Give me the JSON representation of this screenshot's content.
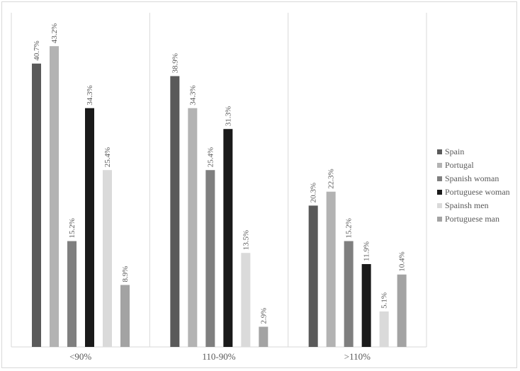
{
  "chart_data": {
    "type": "bar",
    "title": "",
    "xlabel": "",
    "ylabel": "",
    "categories": [
      "<90%",
      "110-90%",
      ">110%"
    ],
    "ylim": [
      0,
      48
    ],
    "grid": "vertical separators between categories",
    "legend_position": "right",
    "series": [
      {
        "name": "Spain",
        "values": [
          40.7,
          38.9,
          20.3
        ],
        "labels": [
          "40.7%",
          "38.9%",
          "20.3%"
        ],
        "color": "#5a5a5a"
      },
      {
        "name": "Portugal",
        "values": [
          43.2,
          34.3,
          22.3
        ],
        "labels": [
          "43.2%",
          "34.3%",
          "22.3%"
        ],
        "color": "#b3b3b3"
      },
      {
        "name": "Spanish woman",
        "values": [
          15.2,
          25.4,
          15.2
        ],
        "labels": [
          "15.2%",
          "25.4%",
          "15.2%"
        ],
        "color": "#7f7f7f"
      },
      {
        "name": "Portuguese woman",
        "values": [
          34.3,
          31.3,
          11.9
        ],
        "labels": [
          "34.3%",
          "31.3%",
          "11.9%"
        ],
        "color": "#1a1a1a"
      },
      {
        "name": "Spainsh men",
        "values": [
          25.4,
          13.5,
          5.1
        ],
        "labels": [
          "25.4%",
          "13.5%",
          "5.1%"
        ],
        "color": "#dadada"
      },
      {
        "name": "Portuguese man",
        "values": [
          8.9,
          2.9,
          10.4
        ],
        "labels": [
          "8.9%",
          "2.9%",
          "10.4%"
        ],
        "color": "#a3a3a3"
      }
    ]
  }
}
